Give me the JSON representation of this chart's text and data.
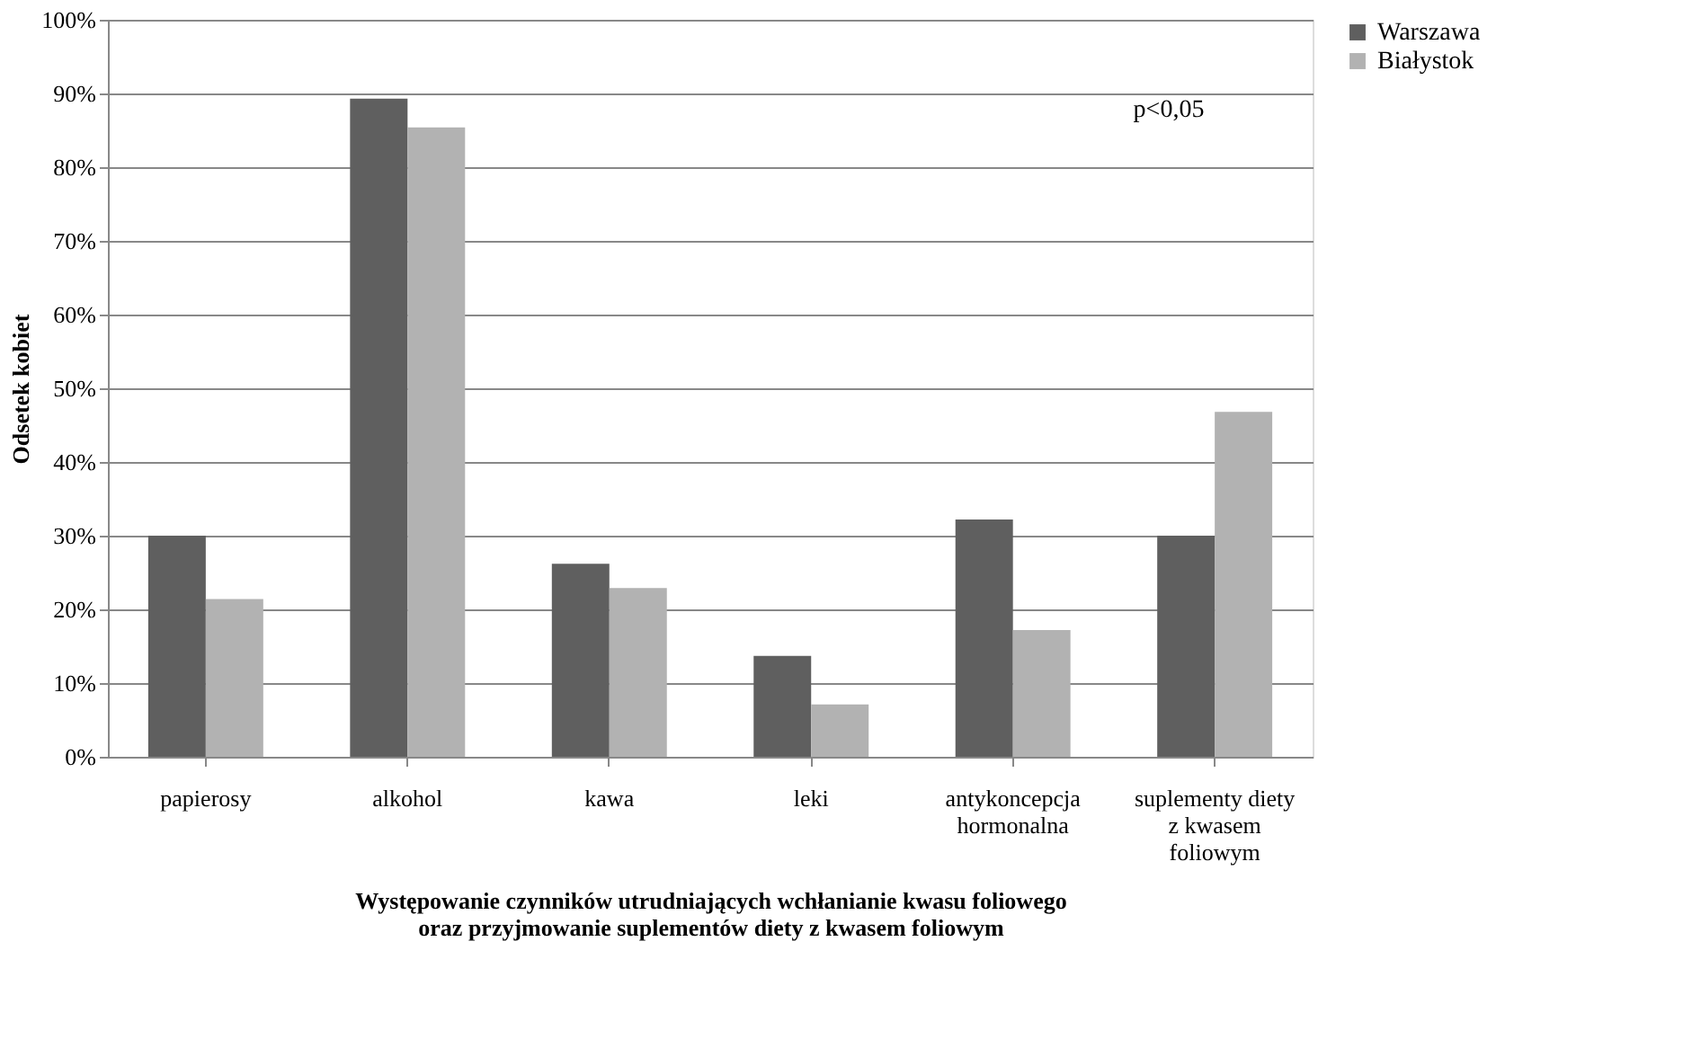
{
  "chart_data": {
    "type": "bar",
    "xlabel": "Występowanie czynników utrudniających wchłanianie kwasu foliowego\noraz przyjmowanie suplementów diety z kwasem foliowym",
    "ylabel": "Odsetek kobiet",
    "categories": [
      "papierosy",
      "alkohol",
      "kawa",
      "leki",
      "antykoncepcja\nhormonalna",
      "suplementy diety\nz kwasem\nfoliowym"
    ],
    "series": [
      {
        "name": "Warszawa",
        "color": "#5f5f5f",
        "values": [
          30.0,
          89.3,
          26.2,
          13.7,
          32.2,
          30.0
        ]
      },
      {
        "name": "Białystok",
        "color": "#b2b2b2",
        "values": [
          21.4,
          85.4,
          22.9,
          7.1,
          17.2,
          46.8
        ]
      }
    ],
    "ylim": [
      0,
      100
    ],
    "yticks": [
      {
        "value": 0,
        "label": "0%"
      },
      {
        "value": 10,
        "label": "10%"
      },
      {
        "value": 20,
        "label": "20%"
      },
      {
        "value": 30,
        "label": "30%"
      },
      {
        "value": 40,
        "label": "40%"
      },
      {
        "value": 50,
        "label": "50%"
      },
      {
        "value": 60,
        "label": "60%"
      },
      {
        "value": 70,
        "label": "70%"
      },
      {
        "value": 80,
        "label": "80%"
      },
      {
        "value": 90,
        "label": "90%"
      },
      {
        "value": 100,
        "label": "100%"
      }
    ],
    "grid": "y",
    "legend": "right",
    "annotations": [
      "p<0,05"
    ]
  }
}
